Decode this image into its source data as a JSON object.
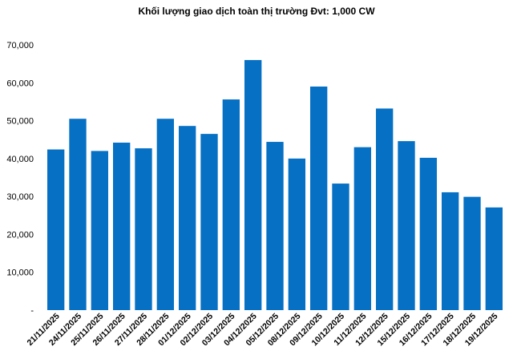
{
  "chart_data": {
    "type": "bar",
    "title": "Khối lượng giao dịch toàn thị trường Đvt: 1,000 CW",
    "xlabel": "",
    "ylabel": "",
    "ylim": [
      0,
      70000
    ],
    "yticks": [
      0,
      10000,
      20000,
      30000,
      40000,
      50000,
      60000,
      70000
    ],
    "ytick_labels": [
      "-",
      "10,000",
      "20,000",
      "30,000",
      "40,000",
      "50,000",
      "60,000",
      "70,000"
    ],
    "grid": false,
    "legend": "none",
    "bar_color": "#0570C4",
    "categories": [
      "21/11/2025",
      "24/11/2025",
      "25/11/2025",
      "26/11/2025",
      "27/11/2025",
      "28/11/2025",
      "01/12/2025",
      "02/12/2025",
      "03/12/2025",
      "04/12/2025",
      "05/12/2025",
      "08/12/2025",
      "09/12/2025",
      "10/12/2025",
      "11/12/2025",
      "12/12/2025",
      "15/12/2025",
      "16/12/2025",
      "17/12/2025",
      "18/12/2025",
      "19/12/2025"
    ],
    "values": [
      42400,
      50500,
      42000,
      44200,
      42700,
      50500,
      48600,
      46500,
      55600,
      66000,
      44400,
      40000,
      59000,
      33400,
      43000,
      53200,
      44600,
      40200,
      31100,
      29900,
      27100
    ]
  }
}
